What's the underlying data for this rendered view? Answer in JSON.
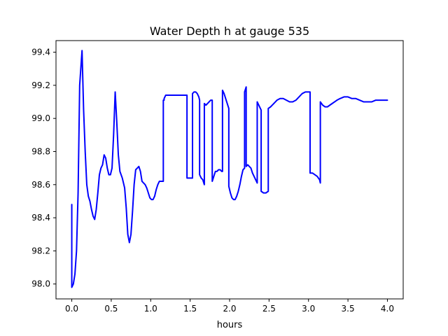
{
  "chart_data": {
    "type": "line",
    "title": "Water Depth h at gauge 535",
    "xlabel": "hours",
    "ylabel": "",
    "xlim": [
      -0.2,
      4.2
    ],
    "ylim": [
      97.91,
      99.47
    ],
    "xticks": [
      0.0,
      0.5,
      1.0,
      1.5,
      2.0,
      2.5,
      3.0,
      3.5,
      4.0
    ],
    "xtick_labels": [
      "0.0",
      "0.5",
      "1.0",
      "1.5",
      "2.0",
      "2.5",
      "3.0",
      "3.5",
      "4.0"
    ],
    "yticks": [
      98.0,
      98.2,
      98.4,
      98.6,
      98.8,
      99.0,
      99.2,
      99.4
    ],
    "ytick_labels": [
      "98.0",
      "98.2",
      "98.4",
      "98.6",
      "98.8",
      "99.0",
      "99.2",
      "99.4"
    ],
    "grid": false,
    "legend": "none",
    "series": [
      {
        "color": "#0000ff",
        "x": [
          0.0,
          0.0,
          0.02,
          0.04,
          0.06,
          0.08,
          0.1,
          0.13,
          0.15,
          0.17,
          0.19,
          0.21,
          0.23,
          0.25,
          0.27,
          0.29,
          0.31,
          0.33,
          0.35,
          0.37,
          0.39,
          0.41,
          0.43,
          0.45,
          0.47,
          0.49,
          0.51,
          0.53,
          0.55,
          0.57,
          0.59,
          0.61,
          0.64,
          0.67,
          0.69,
          0.71,
          0.73,
          0.75,
          0.77,
          0.79,
          0.81,
          0.83,
          0.85,
          0.87,
          0.89,
          0.91,
          0.93,
          0.95,
          0.97,
          0.99,
          1.01,
          1.03,
          1.05,
          1.07,
          1.09,
          1.11,
          1.13,
          1.15,
          1.16,
          1.16,
          1.17,
          1.17,
          1.19,
          1.21,
          1.23,
          1.25,
          1.27,
          1.27,
          1.29,
          1.31,
          1.33,
          1.35,
          1.37,
          1.39,
          1.41,
          1.43,
          1.45,
          1.46,
          1.46,
          1.48,
          1.5,
          1.52,
          1.53,
          1.53,
          1.55,
          1.57,
          1.59,
          1.61,
          1.62,
          1.62,
          1.64,
          1.66,
          1.68,
          1.68,
          1.7,
          1.72,
          1.74,
          1.76,
          1.78,
          1.78,
          1.8,
          1.82,
          1.84,
          1.86,
          1.88,
          1.9,
          1.91,
          1.91,
          1.93,
          1.95,
          1.97,
          1.99,
          1.99,
          2.01,
          2.03,
          2.05,
          2.07,
          2.09,
          2.11,
          2.13,
          2.15,
          2.17,
          2.19,
          2.19,
          2.21,
          2.21,
          2.23,
          2.25,
          2.27,
          2.29,
          2.31,
          2.33,
          2.35,
          2.35,
          2.37,
          2.39,
          2.4,
          2.4,
          2.43,
          2.46,
          2.49,
          2.49,
          2.52,
          2.56,
          2.6,
          2.64,
          2.68,
          2.72,
          2.76,
          2.8,
          2.84,
          2.88,
          2.92,
          2.96,
          3.0,
          3.02,
          3.02,
          3.05,
          3.08,
          3.11,
          3.14,
          3.15,
          3.15,
          3.18,
          3.21,
          3.24,
          3.27,
          3.3,
          3.33,
          3.36,
          3.4,
          3.45,
          3.5,
          3.55,
          3.6,
          3.65,
          3.7,
          3.75,
          3.8,
          3.85,
          3.9,
          3.95,
          4.0
        ],
        "y": [
          98.48,
          97.98,
          98.0,
          98.06,
          98.2,
          98.55,
          99.2,
          99.41,
          99.05,
          98.8,
          98.6,
          98.53,
          98.5,
          98.45,
          98.41,
          98.39,
          98.45,
          98.55,
          98.66,
          98.7,
          98.72,
          98.78,
          98.76,
          98.7,
          98.66,
          98.66,
          98.7,
          98.9,
          99.16,
          98.98,
          98.78,
          98.68,
          98.64,
          98.58,
          98.46,
          98.3,
          98.25,
          98.3,
          98.44,
          98.6,
          98.69,
          98.7,
          98.71,
          98.68,
          98.62,
          98.61,
          98.6,
          98.58,
          98.55,
          98.52,
          98.51,
          98.51,
          98.53,
          98.57,
          98.6,
          98.62,
          98.62,
          98.62,
          98.62,
          99.11,
          99.11,
          99.12,
          99.14,
          99.14,
          99.14,
          99.14,
          99.14,
          99.14,
          99.14,
          99.14,
          99.14,
          99.14,
          99.14,
          99.14,
          99.14,
          99.14,
          99.14,
          99.14,
          98.64,
          98.64,
          98.64,
          98.64,
          98.64,
          99.15,
          99.16,
          99.16,
          99.15,
          99.13,
          99.11,
          98.66,
          98.64,
          98.63,
          98.6,
          99.09,
          99.08,
          99.09,
          99.1,
          99.11,
          99.11,
          98.62,
          98.65,
          98.68,
          98.68,
          98.69,
          98.69,
          98.68,
          98.68,
          99.17,
          99.15,
          99.12,
          99.09,
          99.06,
          98.59,
          98.55,
          98.52,
          98.51,
          98.51,
          98.53,
          98.56,
          98.6,
          98.65,
          98.69,
          98.7,
          99.16,
          99.19,
          98.71,
          98.72,
          98.71,
          98.7,
          98.67,
          98.65,
          98.63,
          98.61,
          99.1,
          99.08,
          99.06,
          99.05,
          98.56,
          98.55,
          98.55,
          98.56,
          99.06,
          99.07,
          99.09,
          99.11,
          99.12,
          99.12,
          99.11,
          99.1,
          99.1,
          99.11,
          99.13,
          99.15,
          99.16,
          99.16,
          99.16,
          98.67,
          98.67,
          98.66,
          98.65,
          98.63,
          98.61,
          99.1,
          99.08,
          99.07,
          99.07,
          99.08,
          99.09,
          99.1,
          99.11,
          99.12,
          99.13,
          99.13,
          99.12,
          99.12,
          99.11,
          99.1,
          99.1,
          99.1,
          99.11,
          99.11,
          99.11,
          99.11
        ]
      }
    ]
  }
}
